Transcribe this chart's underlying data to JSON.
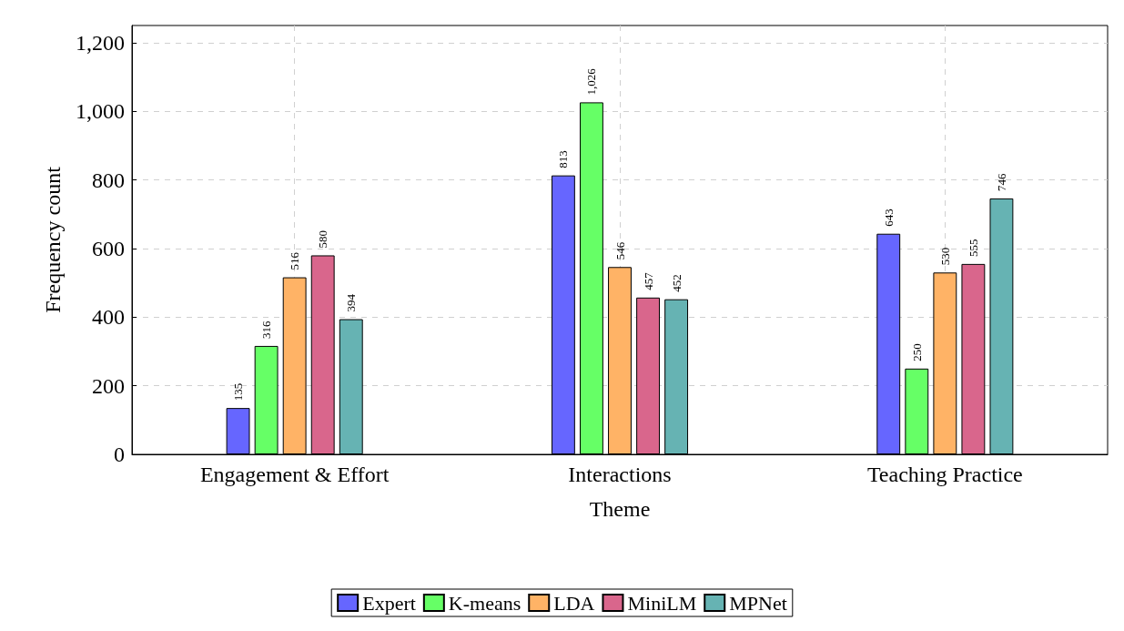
{
  "chart_data": {
    "type": "bar",
    "xlabel": "Theme",
    "ylabel": "Frequency count",
    "categories": [
      "Engagement & Effort",
      "Interactions",
      "Teaching Practice"
    ],
    "series": [
      {
        "name": "Expert",
        "color": "#6666ff",
        "values": [
          135,
          813,
          643
        ],
        "value_labels": [
          "135",
          "813",
          "643"
        ]
      },
      {
        "name": "K-means",
        "color": "#66ff66",
        "values": [
          316,
          1026,
          250
        ],
        "value_labels": [
          "316",
          "1,026",
          "250"
        ]
      },
      {
        "name": "LDA",
        "color": "#ffb366",
        "values": [
          516,
          546,
          530
        ],
        "value_labels": [
          "516",
          "546",
          "530"
        ]
      },
      {
        "name": "MiniLM",
        "color": "#d9668c",
        "values": [
          580,
          457,
          555
        ],
        "value_labels": [
          "580",
          "457",
          "555"
        ]
      },
      {
        "name": "MPNet",
        "color": "#66b3b3",
        "values": [
          394,
          452,
          746
        ],
        "value_labels": [
          "394",
          "452",
          "746"
        ]
      }
    ],
    "ylim": [
      0,
      1250
    ],
    "yticks": [
      0,
      200,
      400,
      600,
      800,
      {
        "value": 1000,
        "label": "1,000"
      },
      {
        "value": 1200,
        "label": "1,200"
      }
    ],
    "grid": true,
    "legend": "bottom"
  }
}
